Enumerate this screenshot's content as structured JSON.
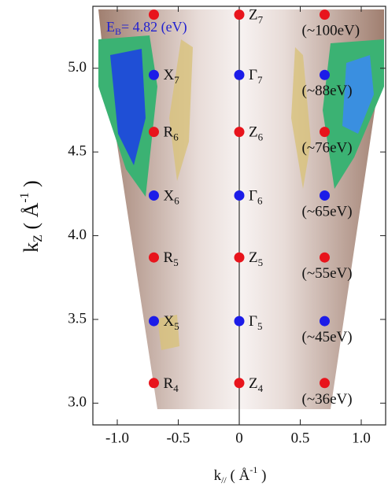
{
  "chart_data": {
    "type": "scatter",
    "annotation": [
      "E",
      "B",
      "= 4.82 (eV)"
    ],
    "xlabel": [
      "k",
      "//",
      " ( Å",
      "-1",
      " )"
    ],
    "ylabel": [
      "k",
      "Z",
      " ( Å",
      "-1",
      " )"
    ],
    "xlim": [
      -1.2,
      1.2
    ],
    "ylim": [
      2.87,
      5.37
    ],
    "xticks": [
      {
        "value": -1,
        "label": "-1.0"
      },
      -0.5,
      0,
      0.5,
      {
        "value": 1,
        "label": "1.0"
      }
    ],
    "yticks": [
      {
        "value": 3,
        "label": "3.0"
      },
      3.5,
      {
        "value": 4,
        "label": "4.0"
      },
      4.5,
      {
        "value": 5,
        "label": "5.0"
      }
    ],
    "series": [
      {
        "color": "#e8141c",
        "x": [
          -0.7,
          -0.7,
          -0.7,
          -0.7
        ],
        "values": [
          5.32,
          4.62,
          3.87,
          3.12
        ],
        "labels": [
          null,
          [
            "R",
            "6"
          ],
          [
            "R",
            "5"
          ],
          [
            "R",
            "4"
          ]
        ]
      },
      {
        "color": "#1c1ce8",
        "x": [
          -0.7,
          -0.7,
          -0.7
        ],
        "values": [
          4.96,
          4.24,
          3.49
        ],
        "labels": [
          [
            "X",
            "7"
          ],
          [
            "X",
            "6"
          ],
          [
            "X",
            "5"
          ]
        ]
      },
      {
        "color": "#e8141c",
        "x": [
          0,
          0,
          0,
          0
        ],
        "values": [
          5.32,
          4.62,
          3.87,
          3.12
        ],
        "labels": [
          [
            "Z",
            "7"
          ],
          [
            "Z",
            "6"
          ],
          [
            "Z",
            "5"
          ],
          [
            "Z",
            "4"
          ]
        ]
      },
      {
        "color": "#1c1ce8",
        "x": [
          0,
          0,
          0
        ],
        "values": [
          4.96,
          4.24,
          3.49
        ],
        "labels": [
          [
            "Γ",
            "7"
          ],
          [
            "Γ",
            "6"
          ],
          [
            "Γ",
            "5"
          ]
        ]
      },
      {
        "color": "#e8141c",
        "x": [
          0.7,
          0.7,
          0.7,
          0.7
        ],
        "values": [
          5.32,
          4.62,
          3.87,
          3.12
        ],
        "labels": [
          [
            "(~100eV)"
          ],
          [
            "(~76eV)"
          ],
          [
            "(~55eV)"
          ],
          [
            "(~36eV)"
          ]
        ]
      },
      {
        "color": "#1c1ce8",
        "x": [
          0.7,
          0.7,
          0.7
        ],
        "values": [
          4.96,
          4.24,
          3.49
        ],
        "labels": [
          [
            "(~88eV)"
          ],
          [
            "(~65eV)"
          ],
          [
            "(~45eV)"
          ]
        ]
      }
    ]
  }
}
